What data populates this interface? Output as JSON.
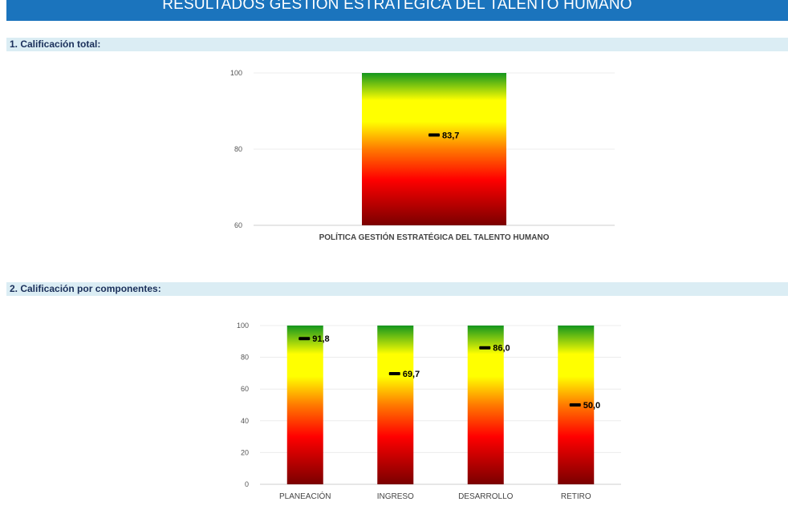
{
  "header": {
    "title": "RESULTADOS GESTIÓN ESTRATÉGICA DEL TALENTO HUMANO"
  },
  "sections": [
    {
      "label": "1. Calificación total:"
    },
    {
      "label": "2. Calificación por componentes:"
    }
  ],
  "colors": {
    "banner": "#1b74bd",
    "section_bg": "#dbedf4",
    "section_text": "#1a2f5a",
    "gradient_stops": [
      "#7a0000",
      "#ff0000",
      "#ff7a00",
      "#ffff00",
      "#ffff00",
      "#14961e"
    ]
  },
  "chart_data": [
    {
      "type": "bar",
      "categories": [
        "POLÍTICA GESTIÓN ESTRATÉGICA DEL TALENTO HUMANO"
      ],
      "bar_top": [
        100
      ],
      "markers": [
        83.7
      ],
      "value_labels": [
        "83,7"
      ],
      "ylim": [
        60,
        100
      ],
      "yticks": [
        60,
        80,
        100
      ],
      "grid": true,
      "legend": "none"
    },
    {
      "type": "bar",
      "categories": [
        "PLANEACIÓN",
        "INGRESO",
        "DESARROLLO",
        "RETIRO"
      ],
      "bar_top": [
        100,
        100,
        100,
        100
      ],
      "markers": [
        91.8,
        69.7,
        86.0,
        50.0
      ],
      "value_labels": [
        "91,8",
        "69,7",
        "86,0",
        "50,0"
      ],
      "ylim": [
        0,
        100
      ],
      "yticks": [
        0,
        20,
        40,
        60,
        80,
        100
      ],
      "grid": true,
      "legend": "none"
    }
  ]
}
